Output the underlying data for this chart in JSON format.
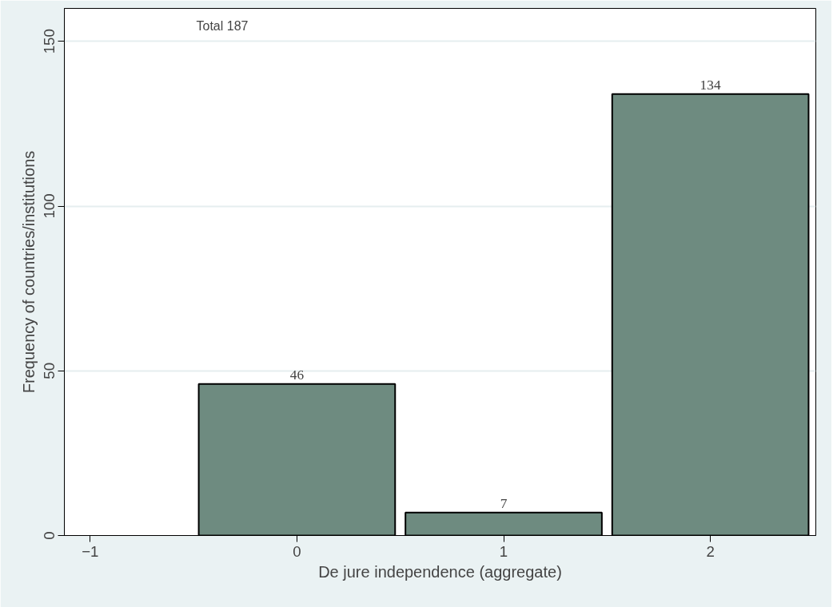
{
  "chart_data": {
    "type": "bar",
    "xlabel": "De jure independence (aggregate)",
    "ylabel": "Frequency of countries/institutions",
    "x": [
      0,
      1,
      2
    ],
    "values": [
      46,
      7,
      134
    ],
    "color": "#6e8b80",
    "data_labels": true,
    "xlim": [
      -1.125,
      2.51
    ],
    "xticks": [
      -1,
      0,
      1,
      2
    ],
    "ylim": [
      0,
      160
    ],
    "yticks": [
      0,
      50,
      100,
      150
    ],
    "grid": "y",
    "annotations": [
      "Total 187"
    ]
  }
}
